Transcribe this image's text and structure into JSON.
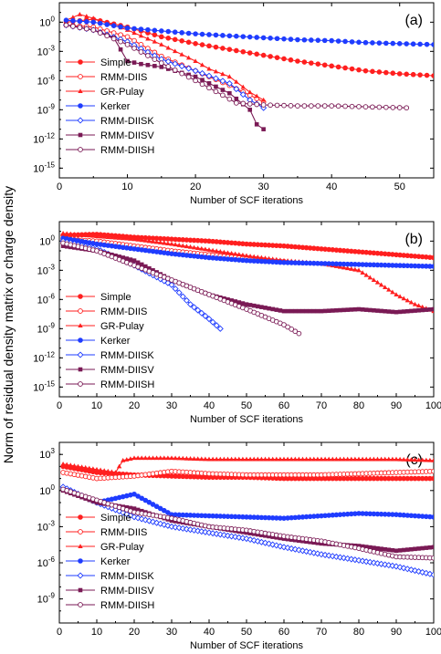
{
  "figure": {
    "shared_ylabel": "Norm of residual density matrix or charge density"
  },
  "series_styles": [
    {
      "name": "Simple",
      "color": "#ff1f1f",
      "marker": "circle-filled"
    },
    {
      "name": "RMM-DIIS",
      "color": "#ff1f1f",
      "marker": "circle-open"
    },
    {
      "name": "GR-Pulay",
      "color": "#ff1f1f",
      "marker": "triangle-filled"
    },
    {
      "name": "Kerker",
      "color": "#1f3cff",
      "marker": "circle-filled"
    },
    {
      "name": "RMM-DIISK",
      "color": "#1f3cff",
      "marker": "diamond-open"
    },
    {
      "name": "RMM-DIISV",
      "color": "#7a1a55",
      "marker": "square-filled"
    },
    {
      "name": "RMM-DIISH",
      "color": "#7a1a55",
      "marker": "circle-open"
    }
  ],
  "chart_data": [
    {
      "type": "line",
      "panel_label": "(a)",
      "xlabel": "Number of SCF iterations",
      "ylabel": "",
      "xlim": [
        0,
        55
      ],
      "ylim_log10": [
        -16,
        2
      ],
      "x_ticks": [
        0,
        10,
        20,
        30,
        40,
        50
      ],
      "y_ticks_log10": [
        0,
        -3,
        -6,
        -9,
        -12,
        -15
      ],
      "legend_position": "left",
      "series": [
        {
          "name": "Simple",
          "points": [
            [
              1,
              0.0
            ],
            [
              5,
              0.3
            ],
            [
              10,
              -0.5
            ],
            [
              15,
              -1.5
            ],
            [
              20,
              -2.2
            ],
            [
              25,
              -2.8
            ],
            [
              30,
              -3.4
            ],
            [
              35,
              -4.0
            ],
            [
              40,
              -4.5
            ],
            [
              45,
              -5.0
            ],
            [
              50,
              -5.3
            ],
            [
              55,
              -5.5
            ]
          ]
        },
        {
          "name": "RMM-DIIS",
          "points": [
            [
              1,
              -0.3
            ],
            [
              5,
              -0.5
            ],
            [
              10,
              -1.5
            ],
            [
              15,
              -3.5
            ],
            [
              20,
              -5.0
            ],
            [
              25,
              -6.5
            ],
            [
              28,
              -7.5
            ],
            [
              30,
              -8.2
            ]
          ]
        },
        {
          "name": "GR-Pulay",
          "points": [
            [
              1,
              0.2
            ],
            [
              3,
              0.8
            ],
            [
              5,
              0.4
            ],
            [
              10,
              -0.8
            ],
            [
              15,
              -2.3
            ],
            [
              20,
              -4.0
            ],
            [
              22,
              -4.8
            ],
            [
              25,
              -5.6
            ],
            [
              28,
              -7.2
            ],
            [
              30,
              -8.0
            ]
          ]
        },
        {
          "name": "Kerker",
          "points": [
            [
              1,
              0.2
            ],
            [
              5,
              0.0
            ],
            [
              10,
              -0.6
            ],
            [
              15,
              -0.9
            ],
            [
              20,
              -1.2
            ],
            [
              25,
              -1.4
            ],
            [
              30,
              -1.6
            ],
            [
              35,
              -1.8
            ],
            [
              40,
              -1.9
            ],
            [
              45,
              -2.1
            ],
            [
              50,
              -2.2
            ],
            [
              55,
              -2.3
            ]
          ]
        },
        {
          "name": "RMM-DIISK",
          "points": [
            [
              1,
              -0.3
            ],
            [
              5,
              -0.8
            ],
            [
              10,
              -2.0
            ],
            [
              15,
              -3.8
            ],
            [
              20,
              -5.0
            ],
            [
              25,
              -6.3
            ],
            [
              28,
              -8.0
            ],
            [
              30,
              -8.8
            ]
          ]
        },
        {
          "name": "RMM-DIISV",
          "points": [
            [
              1,
              -0.3
            ],
            [
              5,
              -0.8
            ],
            [
              8,
              -1.6
            ],
            [
              10,
              -4.0
            ],
            [
              12,
              -4.3
            ],
            [
              15,
              -4.6
            ],
            [
              20,
              -5.6
            ],
            [
              25,
              -7.3
            ],
            [
              28,
              -9.0
            ],
            [
              29,
              -10.5
            ],
            [
              30,
              -11.0
            ]
          ]
        },
        {
          "name": "RMM-DIISH",
          "points": [
            [
              1,
              -0.3
            ],
            [
              5,
              -0.8
            ],
            [
              10,
              -2.3
            ],
            [
              15,
              -4.2
            ],
            [
              20,
              -6.0
            ],
            [
              24,
              -7.5
            ],
            [
              26,
              -8.3
            ],
            [
              30,
              -8.5
            ],
            [
              35,
              -8.6
            ],
            [
              40,
              -8.6
            ],
            [
              45,
              -8.7
            ],
            [
              51,
              -8.8
            ]
          ]
        }
      ]
    },
    {
      "type": "line",
      "panel_label": "(b)",
      "xlabel": "Number of SCF iterations",
      "ylabel": "",
      "xlim": [
        0,
        100
      ],
      "ylim_log10": [
        -16,
        2
      ],
      "x_ticks": [
        0,
        10,
        20,
        30,
        40,
        50,
        60,
        70,
        80,
        90,
        100
      ],
      "y_ticks_log10": [
        0,
        -3,
        -6,
        -9,
        -12,
        -15
      ],
      "legend_position": "left",
      "series": [
        {
          "name": "Simple",
          "points": [
            [
              1,
              0.6
            ],
            [
              10,
              0.7
            ],
            [
              20,
              0.4
            ],
            [
              30,
              0.2
            ],
            [
              40,
              0.0
            ],
            [
              50,
              -0.3
            ],
            [
              60,
              -0.5
            ],
            [
              70,
              -0.8
            ],
            [
              80,
              -1.1
            ],
            [
              90,
              -1.4
            ],
            [
              100,
              -1.7
            ]
          ]
        },
        {
          "name": "RMM-DIIS",
          "points": [
            [
              1,
              0.2
            ],
            [
              10,
              0.0
            ],
            [
              20,
              -0.5
            ],
            [
              30,
              -1.0
            ],
            [
              40,
              -1.4
            ],
            [
              50,
              -1.8
            ],
            [
              55,
              -2.0
            ],
            [
              60,
              -2.1
            ]
          ]
        },
        {
          "name": "GR-Pulay",
          "points": [
            [
              1,
              0.8
            ],
            [
              10,
              0.5
            ],
            [
              20,
              0.2
            ],
            [
              30,
              -0.3
            ],
            [
              40,
              -0.9
            ],
            [
              50,
              -1.5
            ],
            [
              60,
              -2.0
            ],
            [
              70,
              -2.3
            ],
            [
              80,
              -3.0
            ],
            [
              90,
              -5.5
            ],
            [
              95,
              -6.5
            ],
            [
              100,
              -7.2
            ]
          ]
        },
        {
          "name": "Kerker",
          "points": [
            [
              1,
              0.3
            ],
            [
              10,
              -0.3
            ],
            [
              20,
              -0.8
            ],
            [
              30,
              -1.3
            ],
            [
              40,
              -1.7
            ],
            [
              50,
              -2.0
            ],
            [
              60,
              -2.2
            ],
            [
              70,
              -2.3
            ],
            [
              80,
              -2.4
            ],
            [
              90,
              -2.5
            ],
            [
              100,
              -2.6
            ]
          ]
        },
        {
          "name": "RMM-DIISK",
          "points": [
            [
              1,
              0.0
            ],
            [
              10,
              -0.8
            ],
            [
              20,
              -2.5
            ],
            [
              30,
              -4.5
            ],
            [
              35,
              -6.5
            ],
            [
              40,
              -8.0
            ],
            [
              43,
              -9.0
            ]
          ]
        },
        {
          "name": "RMM-DIISV",
          "points": [
            [
              1,
              -0.5
            ],
            [
              10,
              -1.0
            ],
            [
              20,
              -2.0
            ],
            [
              30,
              -4.0
            ],
            [
              40,
              -5.5
            ],
            [
              50,
              -6.5
            ],
            [
              60,
              -7.2
            ],
            [
              70,
              -7.2
            ],
            [
              80,
              -7.0
            ],
            [
              90,
              -7.3
            ],
            [
              100,
              -7.0
            ]
          ]
        },
        {
          "name": "RMM-DIISH",
          "points": [
            [
              1,
              -0.2
            ],
            [
              10,
              -1.0
            ],
            [
              20,
              -2.5
            ],
            [
              30,
              -4.0
            ],
            [
              40,
              -5.5
            ],
            [
              50,
              -7.0
            ],
            [
              60,
              -8.6
            ],
            [
              64,
              -9.5
            ]
          ]
        }
      ]
    },
    {
      "type": "line",
      "panel_label": "(c)",
      "xlabel": "Number of SCF iterations",
      "ylabel": "",
      "xlim": [
        0,
        100
      ],
      "ylim_log10": [
        -11,
        4
      ],
      "x_ticks": [
        0,
        10,
        20,
        30,
        40,
        50,
        60,
        70,
        80,
        90,
        100
      ],
      "y_ticks_log10": [
        3,
        0,
        -3,
        -6,
        -9
      ],
      "legend_position": "left",
      "series": [
        {
          "name": "Simple",
          "points": [
            [
              1,
              2.0
            ],
            [
              10,
              1.5
            ],
            [
              20,
              1.3
            ],
            [
              30,
              1.2
            ],
            [
              40,
              1.1
            ],
            [
              50,
              1.1
            ],
            [
              60,
              1.0
            ],
            [
              70,
              1.0
            ],
            [
              80,
              1.0
            ],
            [
              90,
              1.0
            ],
            [
              100,
              1.0
            ]
          ]
        },
        {
          "name": "RMM-DIIS",
          "points": [
            [
              1,
              1.5
            ],
            [
              10,
              1.0
            ],
            [
              20,
              1.2
            ],
            [
              30,
              1.6
            ],
            [
              40,
              1.4
            ],
            [
              50,
              1.3
            ],
            [
              60,
              1.3
            ],
            [
              70,
              1.3
            ],
            [
              80,
              1.4
            ],
            [
              90,
              1.5
            ],
            [
              100,
              1.6
            ]
          ]
        },
        {
          "name": "GR-Pulay",
          "points": [
            [
              1,
              2.2
            ],
            [
              15,
              1.5
            ],
            [
              17,
              2.5
            ],
            [
              20,
              2.7
            ],
            [
              30,
              2.7
            ],
            [
              40,
              2.6
            ],
            [
              50,
              2.6
            ],
            [
              60,
              2.6
            ],
            [
              70,
              2.6
            ],
            [
              80,
              2.6
            ],
            [
              90,
              2.6
            ],
            [
              100,
              2.5
            ]
          ]
        },
        {
          "name": "Kerker",
          "points": [
            [
              1,
              0.2
            ],
            [
              10,
              -1.0
            ],
            [
              20,
              -0.3
            ],
            [
              30,
              -2.0
            ],
            [
              40,
              -2.1
            ],
            [
              50,
              -2.2
            ],
            [
              60,
              -2.3
            ],
            [
              70,
              -2.1
            ],
            [
              80,
              -1.9
            ],
            [
              90,
              -2.0
            ],
            [
              100,
              -2.2
            ]
          ]
        },
        {
          "name": "RMM-DIISK",
          "points": [
            [
              1,
              0.3
            ],
            [
              10,
              -1.0
            ],
            [
              20,
              -2.2
            ],
            [
              30,
              -3.0
            ],
            [
              40,
              -3.5
            ],
            [
              50,
              -4.0
            ],
            [
              60,
              -4.7
            ],
            [
              70,
              -5.3
            ],
            [
              80,
              -5.8
            ],
            [
              90,
              -6.3
            ],
            [
              100,
              -7.0
            ]
          ]
        },
        {
          "name": "RMM-DIISV",
          "points": [
            [
              1,
              0.0
            ],
            [
              10,
              -1.0
            ],
            [
              20,
              -1.5
            ],
            [
              30,
              -2.5
            ],
            [
              40,
              -3.0
            ],
            [
              50,
              -3.5
            ],
            [
              60,
              -4.0
            ],
            [
              70,
              -4.4
            ],
            [
              80,
              -4.6
            ],
            [
              90,
              -5.0
            ],
            [
              100,
              -4.7
            ]
          ]
        },
        {
          "name": "RMM-DIISH",
          "points": [
            [
              1,
              0.1
            ],
            [
              10,
              -0.8
            ],
            [
              20,
              -1.8
            ],
            [
              30,
              -2.3
            ],
            [
              40,
              -3.0
            ],
            [
              50,
              -3.3
            ],
            [
              60,
              -3.8
            ],
            [
              70,
              -4.2
            ],
            [
              80,
              -4.8
            ],
            [
              90,
              -5.5
            ],
            [
              100,
              -5.6
            ]
          ]
        }
      ]
    }
  ]
}
